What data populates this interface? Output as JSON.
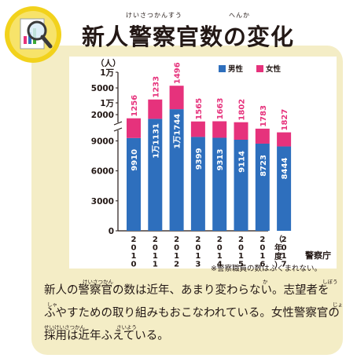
{
  "header": {
    "title": "新人警察官数の変化",
    "ruby": [
      "けいさつかんすう",
      "へんか"
    ]
  },
  "chart_data": {
    "type": "bar",
    "stacked": true,
    "axis_break": true,
    "categories": [
      "2010",
      "2011",
      "2012",
      "2013",
      "2014",
      "2015",
      "2016",
      "2017"
    ],
    "series": [
      {
        "name": "男性",
        "values": [
          9910,
          11131,
          11744,
          9399,
          9313,
          9114,
          8723,
          8444
        ],
        "labels": [
          "9910",
          "1万1131",
          "1万1744",
          "9399",
          "9313",
          "9114",
          "8723",
          "8444"
        ],
        "color": "#2e6fbd"
      },
      {
        "name": "女性",
        "values": [
          1256,
          1233,
          1496,
          1565,
          1663,
          1802,
          1783,
          1827
        ],
        "labels": [
          "1256",
          "1233",
          "1496",
          "1565",
          "1663",
          "1802",
          "1783",
          "1827"
        ],
        "color": "#e6327c"
      }
    ],
    "y_unit": "（人）",
    "x_unit": "（年度）",
    "y_ticks": [
      "0",
      "3000",
      "6000",
      "9000",
      "2000",
      "1万",
      "5000",
      "1万"
    ],
    "legend_position": "top-right"
  },
  "source": "警察庁",
  "note": "※警察職員の数はふくまれない。",
  "body": {
    "text": "新人の警察官の数は近年、あまり変わらない。志望者をふやすための取り組みもおこなわれている。女性警察官の採用は近年ふえている。",
    "ruby": [
      "けいさつかん",
      "か",
      "しぼう",
      "しゃ",
      "じょ",
      "せいけいさつかん",
      "さいよう"
    ]
  }
}
